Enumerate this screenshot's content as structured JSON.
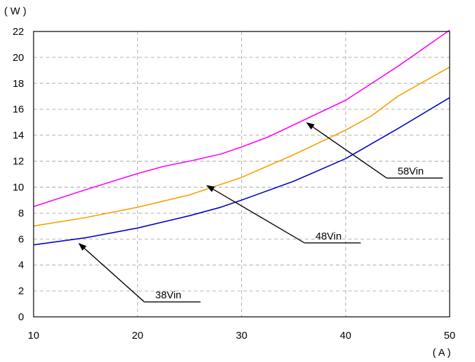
{
  "chart_data": {
    "type": "line",
    "y_unit": "( W )",
    "x_unit": "( A )",
    "xlim": [
      10,
      50
    ],
    "ylim": [
      0,
      22
    ],
    "x_ticks": [
      10,
      20,
      30,
      40,
      50
    ],
    "y_ticks": [
      0,
      2,
      4,
      6,
      8,
      10,
      12,
      14,
      16,
      18,
      20,
      22
    ],
    "grid": true,
    "legend": "none",
    "series": [
      {
        "name": "38Vin",
        "color": "#0000c8",
        "x": [
          10,
          15,
          20,
          25,
          28,
          30,
          35,
          40,
          45,
          50
        ],
        "y": [
          5.55,
          6.1,
          6.85,
          7.8,
          8.45,
          9.0,
          10.45,
          12.2,
          14.5,
          16.9
        ]
      },
      {
        "name": "48Vin",
        "color": "#f5a000",
        "x": [
          10,
          15,
          20,
          25,
          30,
          35,
          40,
          42.5,
          45,
          50
        ],
        "y": [
          7.0,
          7.65,
          8.45,
          9.4,
          10.75,
          12.5,
          14.4,
          15.5,
          17.0,
          19.25
        ]
      },
      {
        "name": "58Vin",
        "color": "#ff00ff",
        "x": [
          10,
          15,
          20,
          22.5,
          25,
          28,
          30,
          32.5,
          35,
          40,
          45,
          50
        ],
        "y": [
          8.5,
          9.8,
          11.05,
          11.6,
          12.0,
          12.55,
          13.1,
          13.85,
          14.8,
          16.7,
          19.3,
          22.1
        ]
      }
    ],
    "annotations": [
      {
        "text": "38Vin",
        "series": "38Vin",
        "label_x": 21.7,
        "label_y": 1.15,
        "arrow_x": 14.3,
        "arrow_y": 5.7
      },
      {
        "text": "48Vin",
        "series": "48Vin",
        "label_x": 37.1,
        "label_y": 5.7,
        "arrow_x": 26.6,
        "arrow_y": 10.15
      },
      {
        "text": "58Vin",
        "series": "58Vin",
        "label_x": 45.0,
        "label_y": 10.7,
        "arrow_x": 36.2,
        "arrow_y": 15.0
      }
    ]
  }
}
